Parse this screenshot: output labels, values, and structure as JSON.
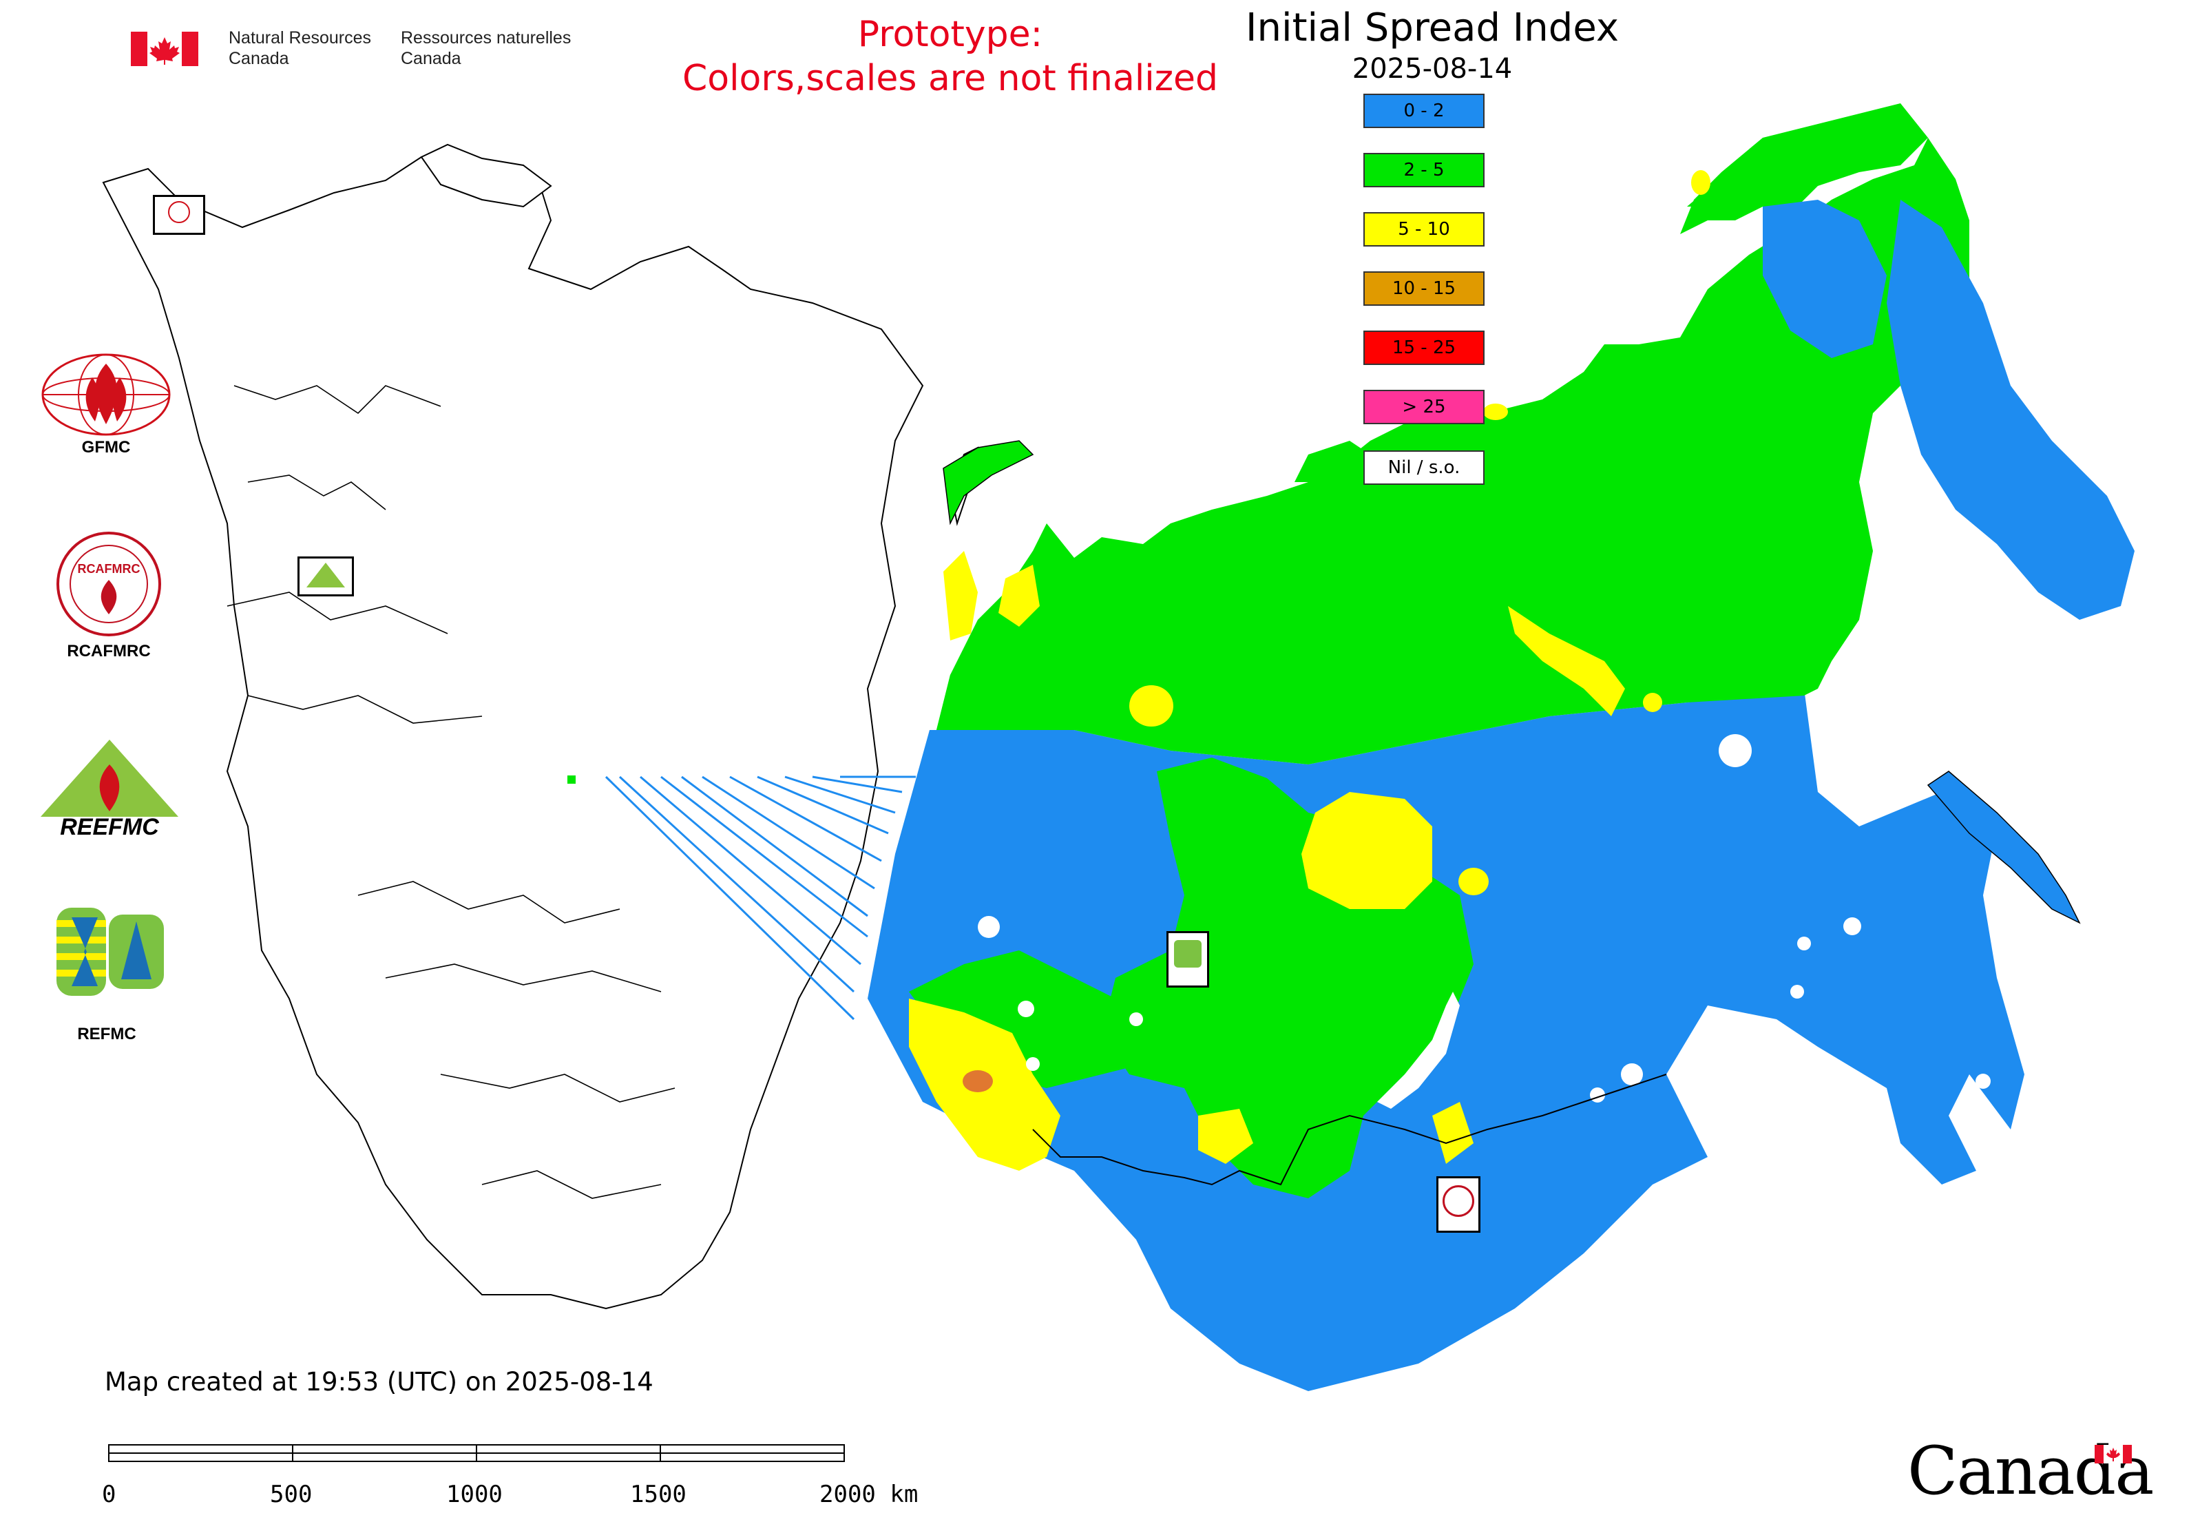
{
  "header": {
    "org_en_line1": "Natural Resources",
    "org_en_line2": "Canada",
    "org_fr_line1": "Ressources naturelles",
    "org_fr_line2": "Canada",
    "prototype_line1": "Prototype:",
    "prototype_line2": "Colors,scales are not finalized"
  },
  "map": {
    "title": "Initial Spread Index",
    "date": "2025-08-14",
    "legend": [
      {
        "label": "0 - 2",
        "color": "#1e8cf0"
      },
      {
        "label": "2 - 5",
        "color": "#00e600"
      },
      {
        "label": "5 - 10",
        "color": "#ffff00"
      },
      {
        "label": "10 - 15",
        "color": "#e09a00"
      },
      {
        "label": "15 - 25",
        "color": "#ff0000"
      },
      {
        "label": "> 25",
        "color": "#ff3399"
      },
      {
        "label": "Nil / s.o.",
        "color": "#ffffff"
      }
    ],
    "created_text": "Map created at 19:53 (UTC) on 2025-08-14",
    "scale_labels": [
      "0",
      "500",
      "1000",
      "1500",
      "2000 km"
    ]
  },
  "logos": {
    "gfmc": "GFMC",
    "rcafmrc": "RCAFMRC",
    "reefmc": "REEFMC",
    "refmc": "REFMC"
  },
  "footer": {
    "wordmark": "Canada"
  }
}
